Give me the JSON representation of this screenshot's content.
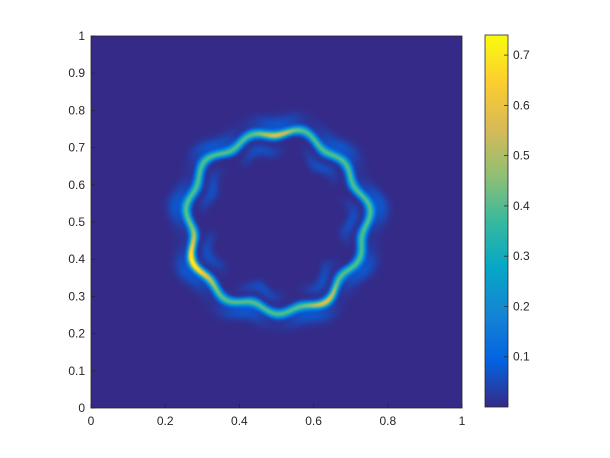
{
  "chart_data": {
    "type": "heatmap",
    "title": "",
    "xlabel": "",
    "ylabel": "",
    "xlim": [
      0,
      1
    ],
    "ylim": [
      0,
      1
    ],
    "x_ticks": [
      "0",
      "0.2",
      "0.4",
      "0.6",
      "0.8",
      "1"
    ],
    "y_ticks": [
      "0",
      "0.1",
      "0.2",
      "0.3",
      "0.4",
      "0.5",
      "0.6",
      "0.7",
      "0.8",
      "0.9",
      "1"
    ],
    "colormap": "parula",
    "colorbar": {
      "range": [
        0,
        0.74
      ],
      "ticks": [
        "0.1",
        "0.2",
        "0.3",
        "0.4",
        "0.5",
        "0.6",
        "0.7"
      ]
    },
    "field": {
      "description": "irregular ring of high values centered near (0.5, 0.5), background ~0",
      "center": [
        0.5,
        0.5
      ],
      "ring_radius": 0.24,
      "ring_peak_value": 0.4,
      "max_value": 0.74,
      "max_location": [
        0.27,
        0.39
      ],
      "secondary_high_locations": [
        [
          0.63,
          0.29
        ],
        [
          0.5,
          0.74
        ]
      ]
    },
    "grid": false,
    "legend": "none"
  }
}
